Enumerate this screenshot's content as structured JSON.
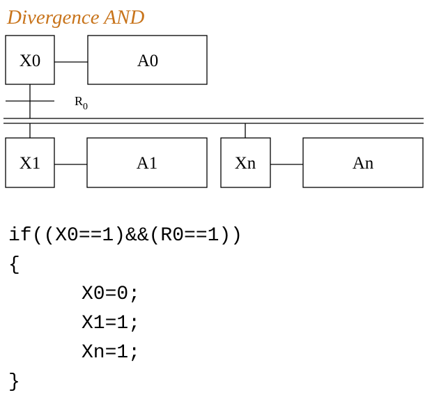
{
  "title": "Divergence AND",
  "colors": {
    "title": "#c8741b",
    "stroke": "#000000",
    "text": "#000000",
    "background": "#ffffff"
  },
  "steps": {
    "x0": "X0",
    "x1": "X1",
    "xn": "Xn"
  },
  "actions": {
    "a0": "A0",
    "a1": "A1",
    "an": "An"
  },
  "transition": {
    "label": "R",
    "subscript": "0"
  },
  "code": {
    "line1": "if((X0==1)&&(R0==1))",
    "open": "{",
    "line2": "X0=0;",
    "line3": "X1=1;",
    "line4": "Xn=1;",
    "close": "}"
  }
}
